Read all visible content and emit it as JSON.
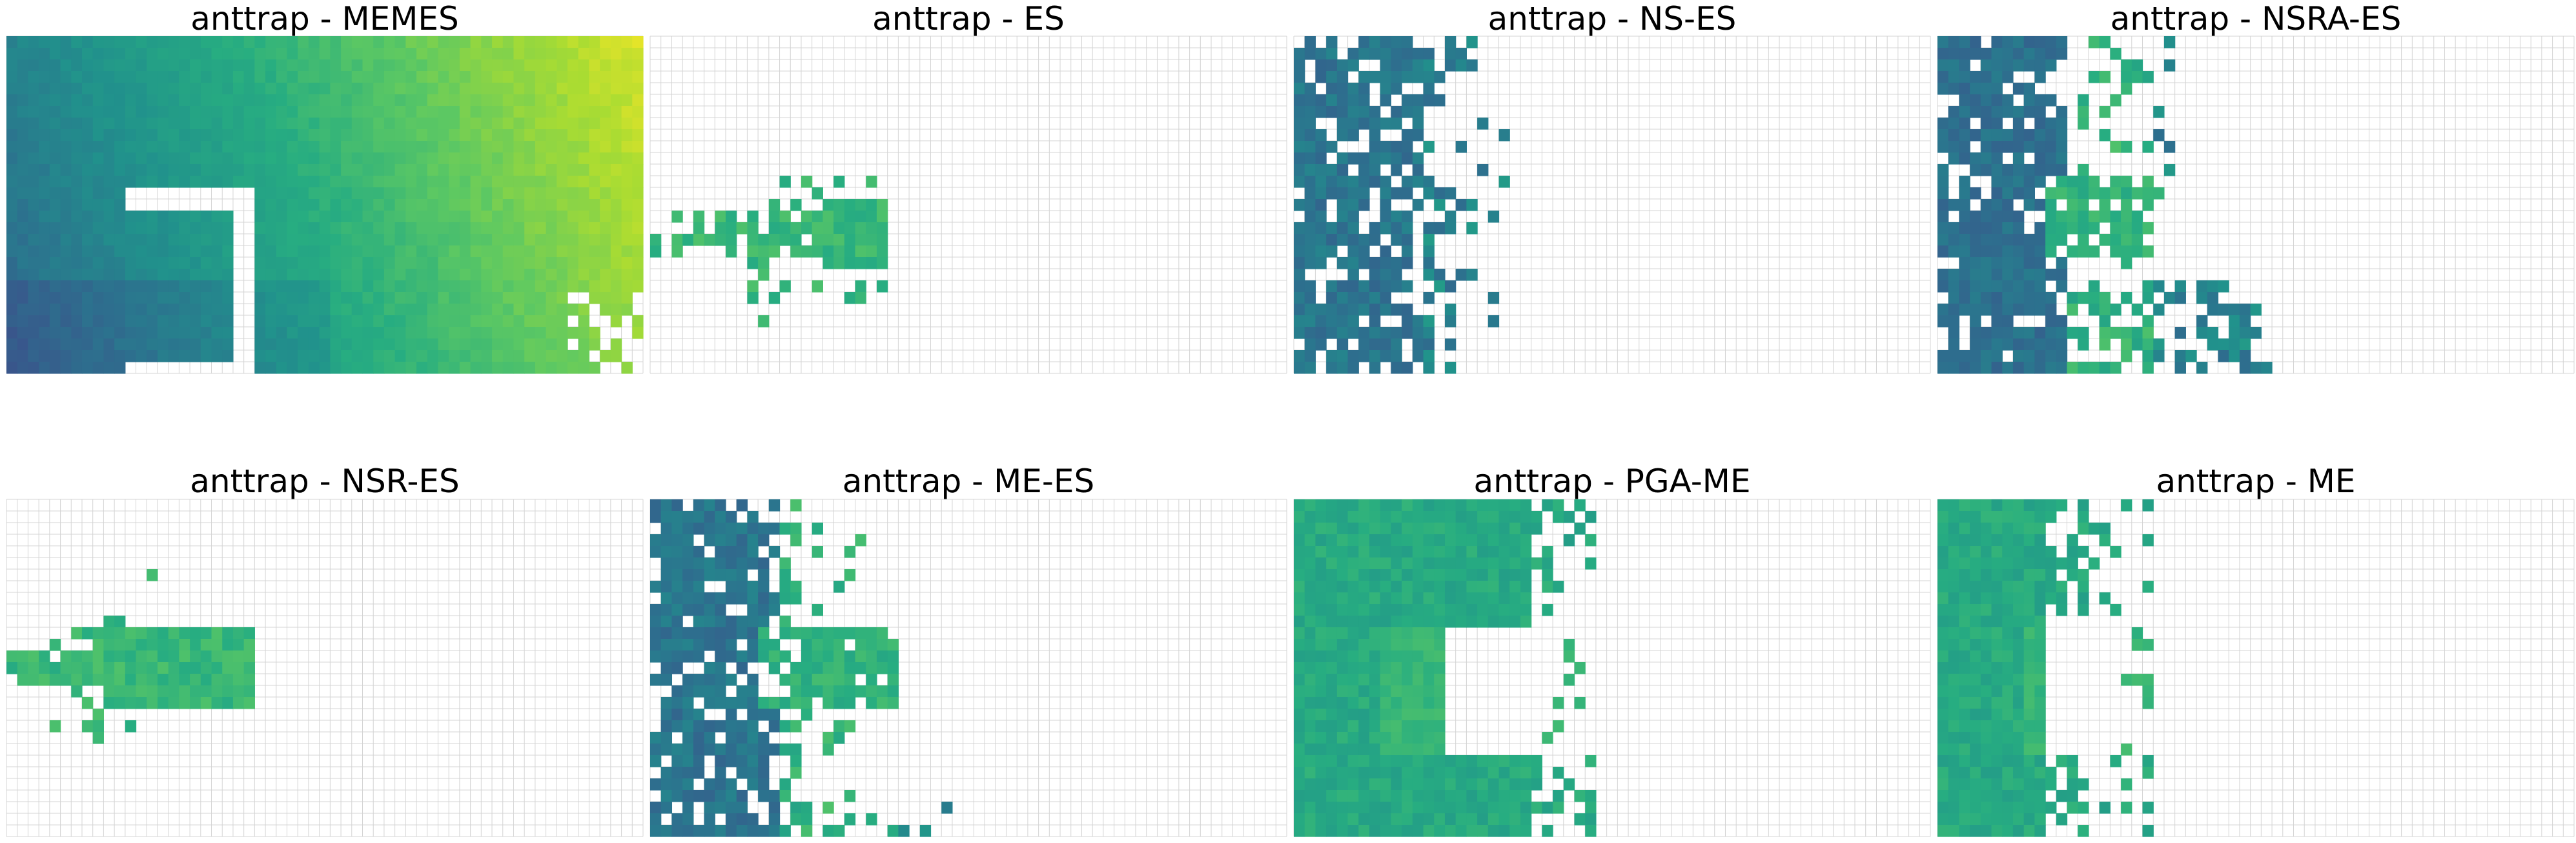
{
  "figure": {
    "ncols": 4,
    "nrows": 2,
    "grid_cols": 59,
    "grid_rows": 29,
    "grid_line_color": "#d4d4d4",
    "colormap": "viridis",
    "background": "#ffffff"
  },
  "chart_data": [
    {
      "type": "heatmap",
      "title": "anttrap - MEMES",
      "pattern": "memes",
      "ranges": []
    },
    {
      "type": "heatmap",
      "title": "anttrap - ES",
      "pattern": "es",
      "ranges": [
        [
          0,
          21,
          1,
          0.72,
          0.8,
          0.5,
          0,
          0
        ]
      ]
    },
    {
      "type": "heatmap",
      "title": "anttrap - NS-ES",
      "pattern": "ns",
      "ranges": [
        [
          0,
          11,
          0,
          0.33,
          0.45,
          0.8,
          0,
          0
        ]
      ]
    },
    {
      "type": "heatmap",
      "title": "anttrap - NSRA-ES",
      "pattern": "nsra",
      "ranges": [
        [
          0,
          13,
          0,
          0.32,
          0.42,
          0.8,
          0,
          0
        ],
        [
          12,
          19,
          1,
          0.58,
          0.72,
          0.35,
          0,
          0
        ]
      ]
    },
    {
      "type": "heatmap",
      "title": "anttrap - NSR-ES",
      "pattern": "nsr",
      "ranges": [
        [
          0,
          22,
          1,
          0.66,
          0.74,
          0.4,
          0,
          0
        ]
      ]
    },
    {
      "type": "heatmap",
      "title": "anttrap - ME-ES",
      "pattern": "mees",
      "ranges": [
        [
          0,
          13,
          0,
          0.33,
          0.45,
          0.8,
          0,
          0
        ],
        [
          12,
          22,
          1,
          0.58,
          0.72,
          0.35,
          0,
          0
        ]
      ]
    },
    {
      "type": "heatmap",
      "title": "anttrap - PGA-ME",
      "pattern": "pgame",
      "ranges": [
        [
          0,
          22,
          0,
          0.58,
          0.72,
          0.02,
          0,
          0
        ],
        [
          22,
          35,
          0,
          0.68,
          0.72,
          0.5,
          0,
          0
        ]
      ]
    },
    {
      "type": "heatmap",
      "title": "anttrap - ME",
      "pattern": "me",
      "ranges": [
        [
          0,
          14,
          0,
          0.58,
          0.66,
          0.02,
          0,
          0
        ],
        [
          14,
          20,
          0,
          0.66,
          0.7,
          0.5,
          0,
          0
        ]
      ]
    }
  ]
}
